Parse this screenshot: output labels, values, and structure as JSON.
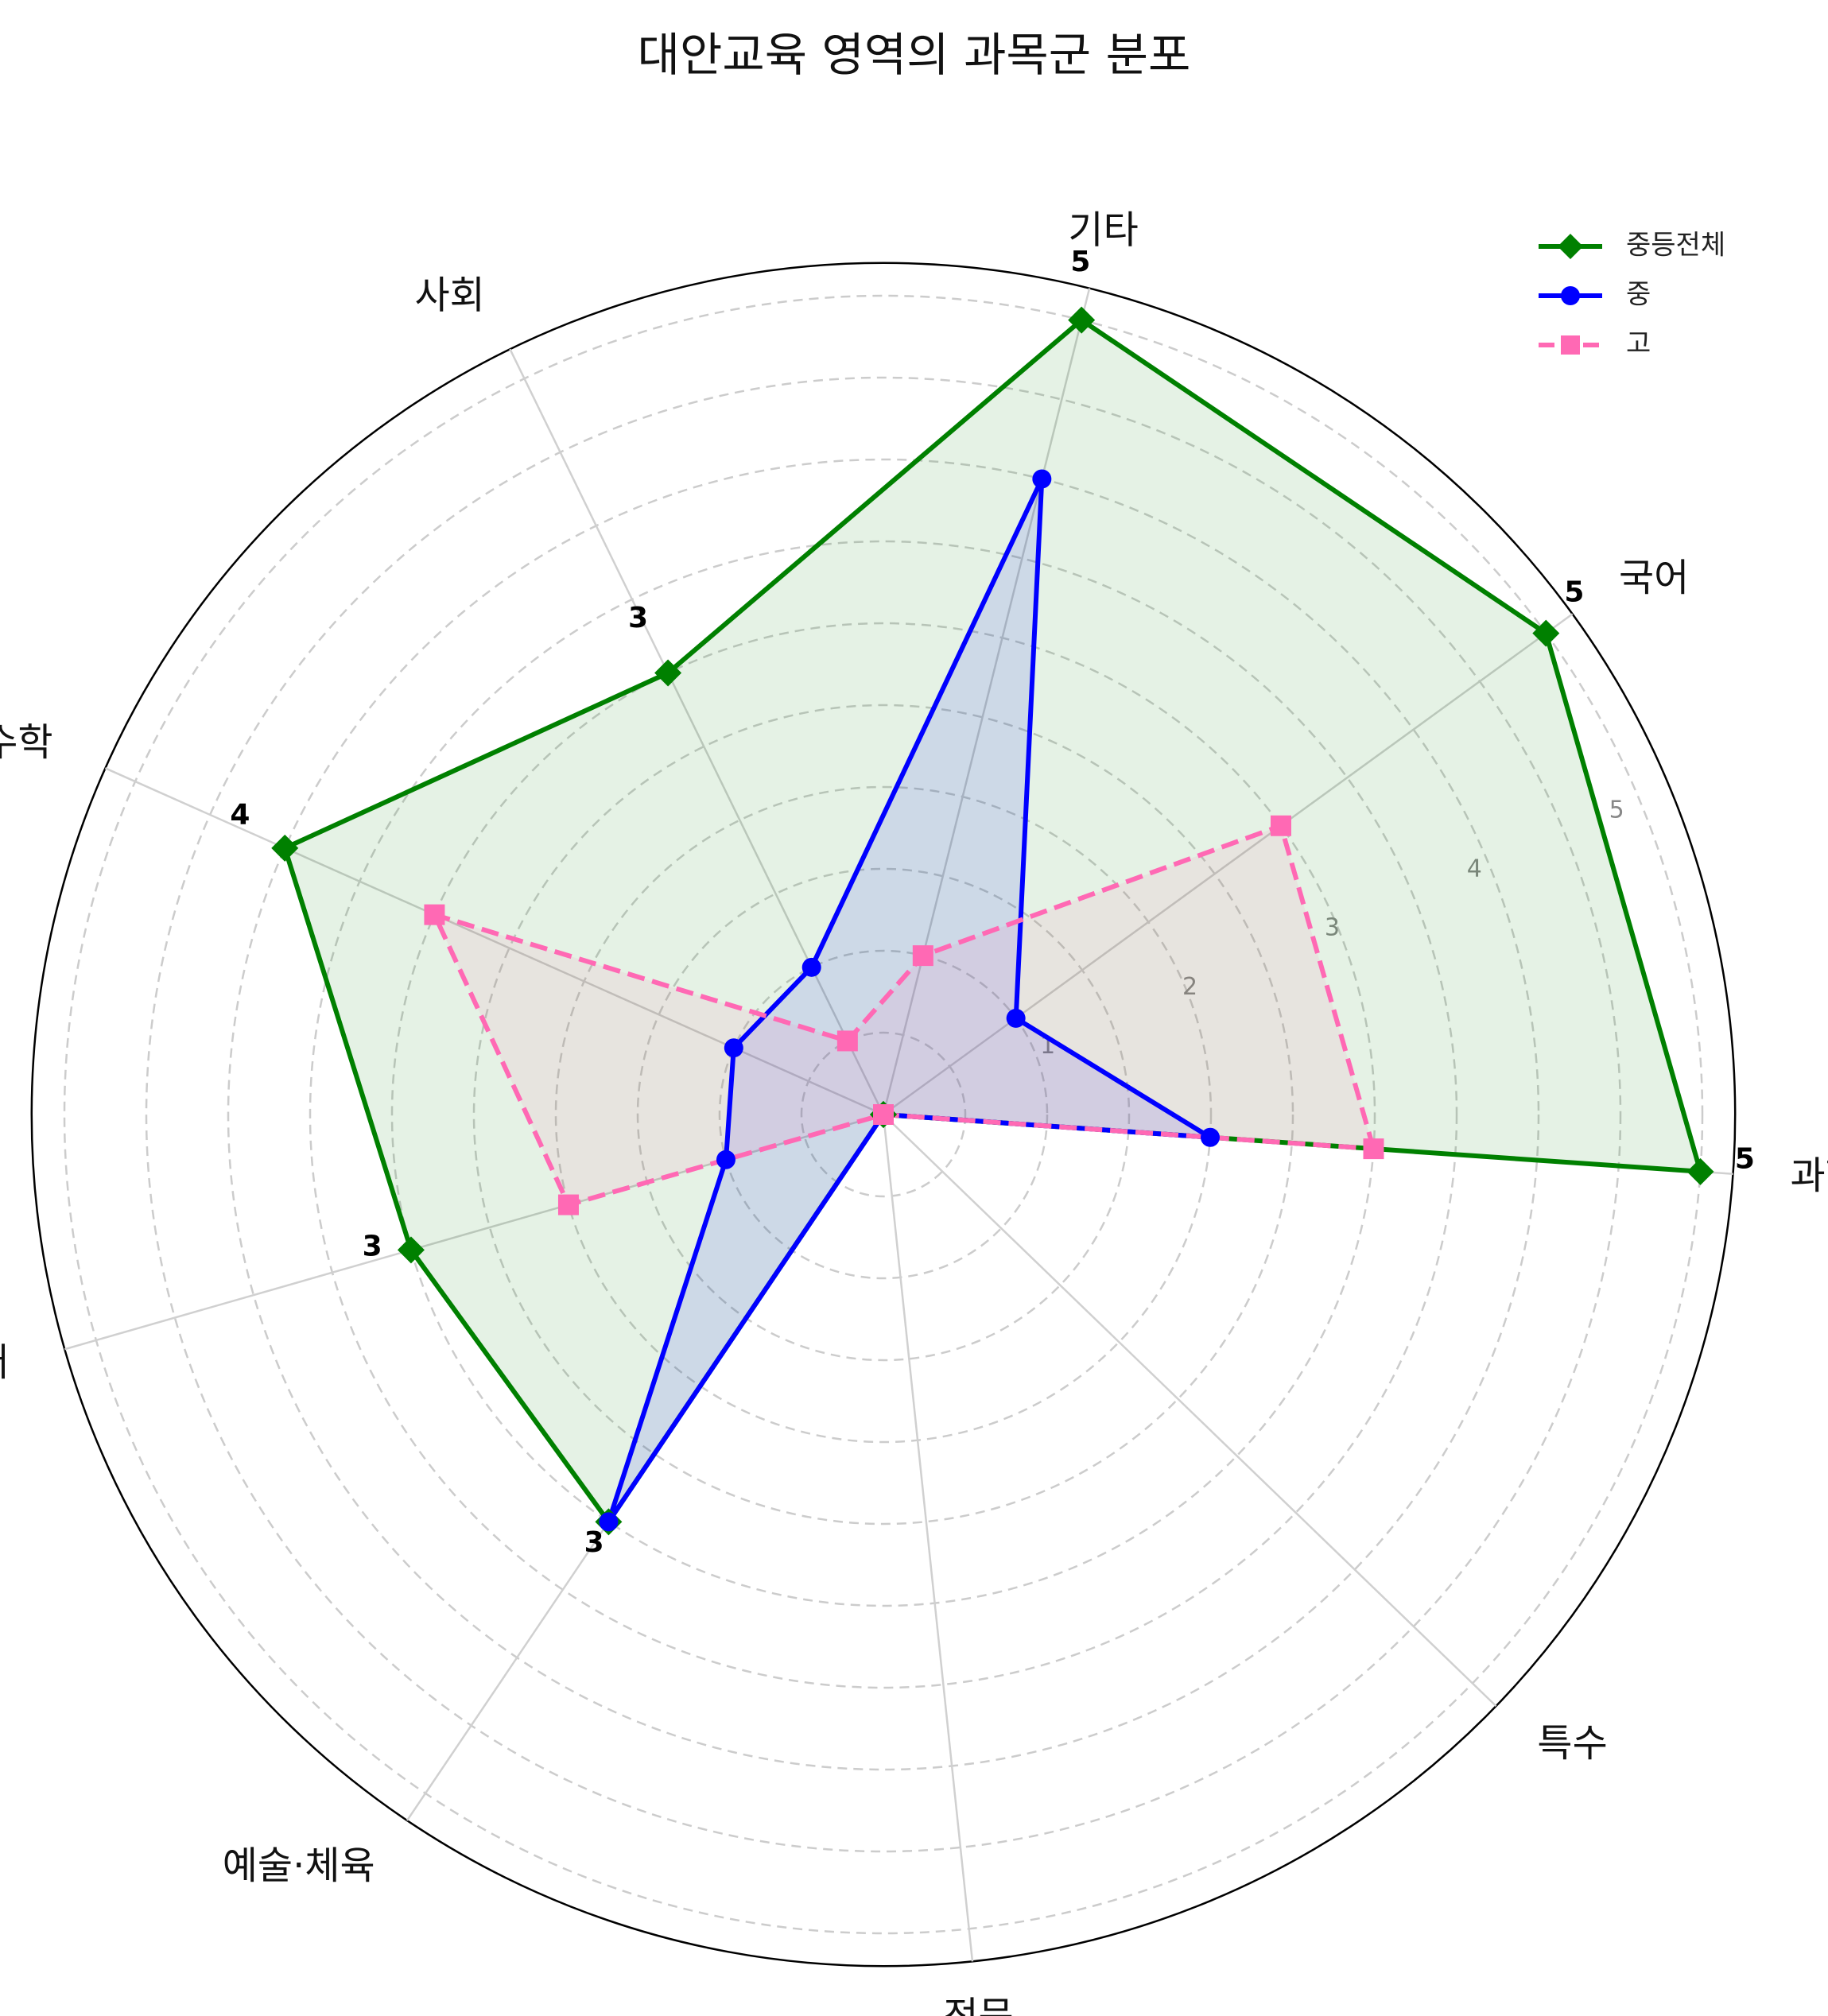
{
  "chart_data": {
    "type": "radar",
    "title": "대안교육 영역의 과목군 분포",
    "categories": [
      "과학",
      "국어",
      "기타",
      "사회",
      "수학",
      "영어",
      "예술·체육",
      "전문",
      "특수"
    ],
    "rticks": [
      "1",
      "2",
      "3",
      "4",
      "5"
    ],
    "rlim": [
      0,
      5
    ],
    "grid": true,
    "legend_position": "top-right",
    "series": [
      {
        "name": "중등전체",
        "values": [
          5,
          5,
          5,
          3,
          4,
          3,
          3,
          0,
          0
        ],
        "color": "#008000",
        "marker": "diamond",
        "linestyle": "solid",
        "data_labels": [
          "5",
          "5",
          "5",
          "3",
          "4",
          "3",
          "3",
          "",
          ""
        ]
      },
      {
        "name": "중",
        "values": [
          2,
          1,
          4,
          1,
          1,
          1,
          3,
          0,
          0
        ],
        "color": "#0000ff",
        "marker": "circle",
        "linestyle": "solid"
      },
      {
        "name": "고",
        "values": [
          3,
          3,
          1,
          0.5,
          3,
          2,
          0,
          0,
          0
        ],
        "color": "#ff69b4",
        "marker": "square",
        "linestyle": "dashed"
      }
    ]
  }
}
